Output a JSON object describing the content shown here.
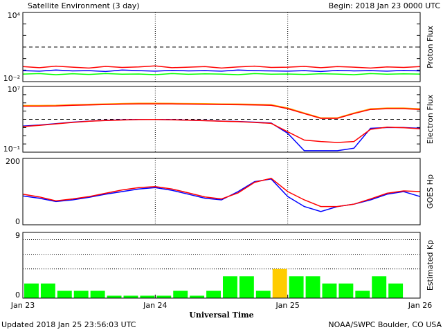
{
  "header": {
    "title": "Satellite Environment (3 day)",
    "begin": "Begin:  2018 Jan 23 0000 UTC"
  },
  "footer": {
    "updated": "Updated 2018 Jan 25 23:56:03 UTC",
    "credit": "NOAA/SWPC Boulder, CO USA"
  },
  "chart_data": [
    {
      "type": "line",
      "ylabel": "Proton Flux",
      "log": true,
      "ylim": [
        0.01,
        10000
      ],
      "yticks": [
        {
          "value": 0.01,
          "label": "10⁻²"
        },
        {
          "value": 10000,
          "label": "10⁴"
        }
      ],
      "threshold": 10,
      "x": [
        0,
        3,
        6,
        9,
        12,
        15,
        18,
        21,
        24,
        27,
        30,
        33,
        36,
        39,
        42,
        45,
        48,
        51,
        54,
        57,
        60,
        63,
        66,
        69,
        72
      ],
      "series": [
        {
          "name": "P1",
          "color": "#00ff00",
          "values": [
            0.045,
            0.05,
            0.04,
            0.048,
            0.042,
            0.05,
            0.044,
            0.046,
            0.04,
            0.05,
            0.043,
            0.047,
            0.045,
            0.04,
            0.05,
            0.044,
            0.046,
            0.042,
            0.048,
            0.045,
            0.04,
            0.05,
            0.044,
            0.047,
            0.045
          ]
        },
        {
          "name": "P2",
          "color": "#0000ff",
          "values": [
            0.09,
            0.08,
            0.1,
            0.085,
            0.09,
            0.075,
            0.1,
            0.09,
            0.08,
            0.095,
            0.085,
            0.09,
            0.08,
            0.1,
            0.09,
            0.085,
            0.08,
            0.09,
            0.075,
            0.095,
            0.085,
            0.09,
            0.08,
            0.095,
            0.085
          ]
        },
        {
          "name": "P3",
          "color": "#ff0000",
          "values": [
            0.2,
            0.16,
            0.22,
            0.18,
            0.15,
            0.21,
            0.17,
            0.19,
            0.23,
            0.16,
            0.18,
            0.2,
            0.15,
            0.19,
            0.22,
            0.17,
            0.18,
            0.21,
            0.16,
            0.2,
            0.18,
            0.15,
            0.19,
            0.17,
            0.2
          ]
        }
      ]
    },
    {
      "type": "line",
      "ylabel": "Electron Flux",
      "log": true,
      "ylim": [
        0.1,
        10000000
      ],
      "yticks": [
        {
          "value": 0.1,
          "label": "10⁻¹"
        },
        {
          "value": 10000000,
          "label": "10⁷"
        }
      ],
      "threshold": 1000,
      "x": [
        0,
        3,
        6,
        9,
        12,
        15,
        18,
        21,
        24,
        27,
        30,
        33,
        36,
        39,
        42,
        45,
        48,
        51,
        54,
        57,
        60,
        63,
        66,
        69,
        72
      ],
      "series": [
        {
          "name": "E1",
          "color": "#ffa500",
          "values": [
            48000,
            48000,
            50000,
            60000,
            67000,
            75000,
            85000,
            91000,
            91000,
            89000,
            85000,
            81000,
            75000,
            72000,
            67000,
            60000,
            24000,
            6000,
            1500,
            1500,
            6000,
            19000,
            24000,
            24000,
            19000
          ]
        },
        {
          "name": "E2",
          "color": "#ff0000",
          "values": [
            40000,
            40000,
            42000,
            50000,
            56000,
            63000,
            71000,
            76000,
            76000,
            74000,
            71000,
            68000,
            63000,
            60000,
            56000,
            50000,
            20000,
            5000,
            1300,
            1300,
            5000,
            16000,
            20000,
            20000,
            16000
          ]
        },
        {
          "name": "E3",
          "color": "#0000ff",
          "values": [
            150,
            200,
            300,
            450,
            600,
            750,
            850,
            950,
            950,
            900,
            800,
            700,
            600,
            550,
            450,
            350,
            20,
            0.15,
            0.15,
            0.15,
            0.3,
            80,
            100,
            100,
            80
          ]
        },
        {
          "name": "E4",
          "color": "#ff0000",
          "values": [
            130,
            180,
            280,
            420,
            580,
            720,
            820,
            920,
            950,
            880,
            780,
            680,
            580,
            520,
            420,
            320,
            30,
            3,
            2,
            1.5,
            2,
            60,
            110,
            95,
            70
          ]
        }
      ]
    },
    {
      "type": "line",
      "ylabel": "GOES Hp",
      "ylim": [
        0,
        200
      ],
      "yticks": [
        0,
        200
      ],
      "x": [
        0,
        3,
        6,
        9,
        12,
        15,
        18,
        21,
        24,
        27,
        30,
        33,
        36,
        39,
        42,
        45,
        48,
        51,
        54,
        57,
        60,
        63,
        66,
        69,
        72
      ],
      "series": [
        {
          "name": "H1",
          "color": "#0000ff",
          "values": [
            87,
            80,
            70,
            75,
            83,
            92,
            100,
            108,
            112,
            104,
            92,
            80,
            75,
            100,
            130,
            138,
            85,
            55,
            40,
            55,
            62,
            75,
            92,
            100,
            85
          ]
        },
        {
          "name": "H2",
          "color": "#ff0000",
          "values": [
            92,
            84,
            72,
            78,
            85,
            95,
            105,
            112,
            115,
            108,
            96,
            84,
            78,
            96,
            128,
            140,
            100,
            75,
            55,
            55,
            62,
            78,
            95,
            102,
            100
          ]
        }
      ]
    },
    {
      "type": "bar",
      "ylabel": "Estimated Kp",
      "ylim": [
        0,
        9
      ],
      "yticks": [
        0,
        9
      ],
      "levels": [
        4,
        6,
        8
      ],
      "x": [
        0,
        3,
        6,
        9,
        12,
        15,
        18,
        21,
        24,
        27,
        30,
        33,
        36,
        39,
        42,
        45,
        48,
        51,
        54,
        57,
        60,
        63,
        66,
        69
      ],
      "values": [
        2,
        2,
        1,
        1,
        1,
        0.33,
        0.33,
        0.33,
        0.33,
        1,
        0.33,
        1,
        3,
        3,
        1,
        4,
        3,
        3,
        2,
        2,
        1,
        3,
        2,
        null
      ],
      "colors": [
        "#00ff00",
        "#00ff00",
        "#00ff00",
        "#00ff00",
        "#00ff00",
        "#00ff00",
        "#00ff00",
        "#00ff00",
        "#00ff00",
        "#00ff00",
        "#00ff00",
        "#00ff00",
        "#00ff00",
        "#00ff00",
        "#00ff00",
        "#ffcc00",
        "#00ff00",
        "#00ff00",
        "#00ff00",
        "#00ff00",
        "#00ff00",
        "#00ff00",
        "#00ff00",
        "#00ff00"
      ],
      "xlim": [
        0,
        72
      ],
      "xticks": [
        {
          "value": 0,
          "label": "Jan 23"
        },
        {
          "value": 24,
          "label": "Jan 24"
        },
        {
          "value": 48,
          "label": "Jan 25"
        },
        {
          "value": 72,
          "label": "Jan 26"
        }
      ],
      "xlabel": "Universal Time"
    }
  ]
}
